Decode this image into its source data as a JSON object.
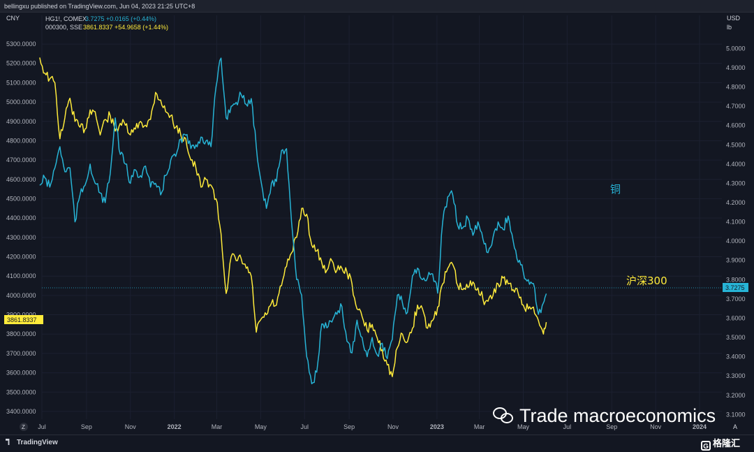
{
  "header": {
    "published": "bellingxu published on TradingView.com, Jun 04, 2023 21:25 UTC+8"
  },
  "legend": {
    "copper": {
      "symbol": "HG1!, COMEX",
      "last": "3.7275",
      "change": "+0.0165 (+0.44%)",
      "color": "#27b4d6"
    },
    "csi300": {
      "symbol": "000300, SSE",
      "last": "3861.8337",
      "change": "+54.9658 (+1.44%)",
      "color": "#ffeb3b"
    }
  },
  "annotations": {
    "copper_label": "铜",
    "csi300_label": "沪深300",
    "watermark": "Trade macroeconomics",
    "brand": "TradingView",
    "corner_brand": "格隆汇",
    "corner_brand_mark": "G",
    "scale_button": "Z",
    "auto_button": "A"
  },
  "colors": {
    "background": "#131722",
    "copper": "#27b4d6",
    "csi300": "#ffeb3b",
    "grid": "#1c2030"
  },
  "chart_data": {
    "type": "line",
    "left_axis": {
      "unit": "CNY",
      "ticks": [
        "5300.0000",
        "5200.0000",
        "5100.0000",
        "5000.0000",
        "4900.0000",
        "4800.0000",
        "4700.0000",
        "4600.0000",
        "4500.0000",
        "4400.0000",
        "4300.0000",
        "4200.0000",
        "4100.0000",
        "4000.0000",
        "3900.0000",
        "3800.0000",
        "3700.0000",
        "3600.0000",
        "3500.0000",
        "3400.0000"
      ],
      "range": [
        3360,
        5340
      ]
    },
    "right_axis": {
      "unit": "USD",
      "unit2": "lb",
      "ticks": [
        "5.0000",
        "4.9000",
        "4.8000",
        "4.7000",
        "4.6000",
        "4.5000",
        "4.4000",
        "4.3000",
        "4.2000",
        "4.1000",
        "4.0000",
        "3.9000",
        "3.8000",
        "3.7000",
        "3.6000",
        "3.5000",
        "3.4000",
        "3.3000",
        "3.2000",
        "3.1000"
      ],
      "range": [
        3.076,
        5.063
      ]
    },
    "x_axis": {
      "range": [
        "2021-07-01",
        "2024-02-01"
      ],
      "ticks": [
        {
          "label": "Jul",
          "date": "2021-07-01",
          "bold": false
        },
        {
          "label": "Sep",
          "date": "2021-09-01",
          "bold": false
        },
        {
          "label": "Nov",
          "date": "2021-11-01",
          "bold": false
        },
        {
          "label": "2022",
          "date": "2022-01-01",
          "bold": true
        },
        {
          "label": "Mar",
          "date": "2022-03-01",
          "bold": false
        },
        {
          "label": "May",
          "date": "2022-05-01",
          "bold": false
        },
        {
          "label": "Jul",
          "date": "2022-07-01",
          "bold": false
        },
        {
          "label": "Sep",
          "date": "2022-09-01",
          "bold": false
        },
        {
          "label": "Nov",
          "date": "2022-11-01",
          "bold": false
        },
        {
          "label": "2023",
          "date": "2023-01-01",
          "bold": true
        },
        {
          "label": "Mar",
          "date": "2023-03-01",
          "bold": false
        },
        {
          "label": "May",
          "date": "2023-05-01",
          "bold": false
        },
        {
          "label": "Jul",
          "date": "2023-07-01",
          "bold": false
        },
        {
          "label": "Sep",
          "date": "2023-09-01",
          "bold": false
        },
        {
          "label": "Nov",
          "date": "2023-11-01",
          "bold": false
        },
        {
          "label": "2024",
          "date": "2024-01-01",
          "bold": true
        }
      ]
    },
    "grid": true,
    "series": [
      {
        "name": "000300, SSE",
        "axis": "left",
        "color": "#ffeb3b",
        "points": [
          [
            "2021-06-28",
            5230
          ],
          [
            "2021-07-05",
            5150
          ],
          [
            "2021-07-12",
            5120
          ],
          [
            "2021-07-19",
            5100
          ],
          [
            "2021-07-26",
            4810
          ],
          [
            "2021-08-02",
            4920
          ],
          [
            "2021-08-09",
            5020
          ],
          [
            "2021-08-16",
            4900
          ],
          [
            "2021-08-23",
            4870
          ],
          [
            "2021-08-30",
            4860
          ],
          [
            "2021-09-06",
            4960
          ],
          [
            "2021-09-13",
            4950
          ],
          [
            "2021-09-20",
            4830
          ],
          [
            "2021-09-27",
            4910
          ],
          [
            "2021-10-04",
            4930
          ],
          [
            "2021-10-11",
            4850
          ],
          [
            "2021-10-18",
            4890
          ],
          [
            "2021-10-25",
            4880
          ],
          [
            "2021-11-01",
            4830
          ],
          [
            "2021-11-08",
            4860
          ],
          [
            "2021-11-15",
            4900
          ],
          [
            "2021-11-22",
            4880
          ],
          [
            "2021-11-29",
            4910
          ],
          [
            "2021-12-06",
            5050
          ],
          [
            "2021-12-13",
            5010
          ],
          [
            "2021-12-20",
            4950
          ],
          [
            "2021-12-27",
            4930
          ],
          [
            "2022-01-03",
            4870
          ],
          [
            "2022-01-10",
            4830
          ],
          [
            "2022-01-17",
            4810
          ],
          [
            "2022-01-24",
            4700
          ],
          [
            "2022-01-31",
            4660
          ],
          [
            "2022-02-07",
            4560
          ],
          [
            "2022-02-14",
            4600
          ],
          [
            "2022-02-21",
            4570
          ],
          [
            "2022-02-28",
            4500
          ],
          [
            "2022-03-07",
            4320
          ],
          [
            "2022-03-14",
            4010
          ],
          [
            "2022-03-21",
            4200
          ],
          [
            "2022-03-28",
            4180
          ],
          [
            "2022-04-04",
            4190
          ],
          [
            "2022-04-11",
            4140
          ],
          [
            "2022-04-18",
            4100
          ],
          [
            "2022-04-25",
            3810
          ],
          [
            "2022-05-02",
            3880
          ],
          [
            "2022-05-09",
            3900
          ],
          [
            "2022-05-16",
            3960
          ],
          [
            "2022-05-23",
            3950
          ],
          [
            "2022-05-30",
            4050
          ],
          [
            "2022-06-06",
            4150
          ],
          [
            "2022-06-13",
            4220
          ],
          [
            "2022-06-20",
            4300
          ],
          [
            "2022-06-27",
            4450
          ],
          [
            "2022-07-04",
            4420
          ],
          [
            "2022-07-11",
            4260
          ],
          [
            "2022-07-18",
            4230
          ],
          [
            "2022-07-25",
            4170
          ],
          [
            "2022-08-01",
            4130
          ],
          [
            "2022-08-08",
            4180
          ],
          [
            "2022-08-15",
            4130
          ],
          [
            "2022-08-22",
            4140
          ],
          [
            "2022-08-29",
            4120
          ],
          [
            "2022-09-05",
            4060
          ],
          [
            "2022-09-12",
            3930
          ],
          [
            "2022-09-19",
            3890
          ],
          [
            "2022-09-26",
            3820
          ],
          [
            "2022-10-03",
            3850
          ],
          [
            "2022-10-10",
            3780
          ],
          [
            "2022-10-17",
            3720
          ],
          [
            "2022-10-24",
            3640
          ],
          [
            "2022-10-31",
            3580
          ],
          [
            "2022-11-07",
            3730
          ],
          [
            "2022-11-14",
            3800
          ],
          [
            "2022-11-21",
            3760
          ],
          [
            "2022-11-28",
            3830
          ],
          [
            "2022-12-05",
            3950
          ],
          [
            "2022-12-12",
            3930
          ],
          [
            "2022-12-19",
            3830
          ],
          [
            "2022-12-26",
            3870
          ],
          [
            "2023-01-02",
            3940
          ],
          [
            "2023-01-09",
            4060
          ],
          [
            "2023-01-16",
            4140
          ],
          [
            "2023-01-23",
            4160
          ],
          [
            "2023-01-30",
            4050
          ],
          [
            "2023-02-06",
            4030
          ],
          [
            "2023-02-13",
            4040
          ],
          [
            "2023-02-20",
            4070
          ],
          [
            "2023-02-27",
            4040
          ],
          [
            "2023-03-06",
            3980
          ],
          [
            "2023-03-13",
            3970
          ],
          [
            "2023-03-20",
            4000
          ],
          [
            "2023-03-27",
            4060
          ],
          [
            "2023-04-03",
            4090
          ],
          [
            "2023-04-10",
            4060
          ],
          [
            "2023-04-17",
            4030
          ],
          [
            "2023-04-24",
            4010
          ],
          [
            "2023-05-01",
            3950
          ],
          [
            "2023-05-08",
            3930
          ],
          [
            "2023-05-15",
            3940
          ],
          [
            "2023-05-22",
            3870
          ],
          [
            "2023-05-29",
            3800
          ],
          [
            "2023-06-02",
            3861.8
          ]
        ]
      },
      {
        "name": "HG1!, COMEX",
        "axis": "right",
        "color": "#27b4d6",
        "points": [
          [
            "2021-06-28",
            4.29
          ],
          [
            "2021-07-05",
            4.33
          ],
          [
            "2021-07-12",
            4.28
          ],
          [
            "2021-07-19",
            4.38
          ],
          [
            "2021-07-26",
            4.49
          ],
          [
            "2021-08-02",
            4.36
          ],
          [
            "2021-08-09",
            4.38
          ],
          [
            "2021-08-16",
            4.1
          ],
          [
            "2021-08-23",
            4.24
          ],
          [
            "2021-08-30",
            4.29
          ],
          [
            "2021-09-06",
            4.4
          ],
          [
            "2021-09-13",
            4.3
          ],
          [
            "2021-09-20",
            4.25
          ],
          [
            "2021-09-27",
            4.2
          ],
          [
            "2021-10-04",
            4.35
          ],
          [
            "2021-10-11",
            4.64
          ],
          [
            "2021-10-18",
            4.45
          ],
          [
            "2021-10-25",
            4.4
          ],
          [
            "2021-11-01",
            4.3
          ],
          [
            "2021-11-08",
            4.37
          ],
          [
            "2021-11-15",
            4.34
          ],
          [
            "2021-11-22",
            4.39
          ],
          [
            "2021-11-29",
            4.28
          ],
          [
            "2021-12-06",
            4.3
          ],
          [
            "2021-12-13",
            4.24
          ],
          [
            "2021-12-20",
            4.34
          ],
          [
            "2021-12-27",
            4.42
          ],
          [
            "2022-01-03",
            4.44
          ],
          [
            "2022-01-10",
            4.53
          ],
          [
            "2022-01-17",
            4.55
          ],
          [
            "2022-01-24",
            4.48
          ],
          [
            "2022-01-31",
            4.5
          ],
          [
            "2022-02-07",
            4.54
          ],
          [
            "2022-02-14",
            4.52
          ],
          [
            "2022-02-21",
            4.49
          ],
          [
            "2022-02-28",
            4.8
          ],
          [
            "2022-03-07",
            4.95
          ],
          [
            "2022-03-14",
            4.64
          ],
          [
            "2022-03-21",
            4.7
          ],
          [
            "2022-03-28",
            4.72
          ],
          [
            "2022-04-04",
            4.76
          ],
          [
            "2022-04-11",
            4.71
          ],
          [
            "2022-04-18",
            4.74
          ],
          [
            "2022-04-25",
            4.49
          ],
          [
            "2022-05-02",
            4.3
          ],
          [
            "2022-05-09",
            4.17
          ],
          [
            "2022-05-16",
            4.3
          ],
          [
            "2022-05-23",
            4.31
          ],
          [
            "2022-05-30",
            4.47
          ],
          [
            "2022-06-06",
            4.48
          ],
          [
            "2022-06-13",
            4.1
          ],
          [
            "2022-06-20",
            3.8
          ],
          [
            "2022-06-27",
            3.72
          ],
          [
            "2022-07-04",
            3.4
          ],
          [
            "2022-07-11",
            3.26
          ],
          [
            "2022-07-18",
            3.32
          ],
          [
            "2022-07-25",
            3.57
          ],
          [
            "2022-08-01",
            3.55
          ],
          [
            "2022-08-08",
            3.58
          ],
          [
            "2022-08-15",
            3.62
          ],
          [
            "2022-08-22",
            3.66
          ],
          [
            "2022-08-29",
            3.48
          ],
          [
            "2022-09-05",
            3.42
          ],
          [
            "2022-09-12",
            3.59
          ],
          [
            "2022-09-19",
            3.5
          ],
          [
            "2022-09-26",
            3.4
          ],
          [
            "2022-10-03",
            3.5
          ],
          [
            "2022-10-10",
            3.41
          ],
          [
            "2022-10-17",
            3.47
          ],
          [
            "2022-10-24",
            3.39
          ],
          [
            "2022-10-31",
            3.49
          ],
          [
            "2022-11-07",
            3.72
          ],
          [
            "2022-11-14",
            3.68
          ],
          [
            "2022-11-21",
            3.63
          ],
          [
            "2022-11-28",
            3.82
          ],
          [
            "2022-12-05",
            3.86
          ],
          [
            "2022-12-12",
            3.8
          ],
          [
            "2022-12-19",
            3.81
          ],
          [
            "2022-12-26",
            3.83
          ],
          [
            "2023-01-02",
            3.73
          ],
          [
            "2023-01-09",
            4.1
          ],
          [
            "2023-01-16",
            4.23
          ],
          [
            "2023-01-23",
            4.24
          ],
          [
            "2023-01-30",
            4.08
          ],
          [
            "2023-02-06",
            4.07
          ],
          [
            "2023-02-13",
            4.12
          ],
          [
            "2023-02-20",
            4.03
          ],
          [
            "2023-02-27",
            4.1
          ],
          [
            "2023-03-06",
            4.01
          ],
          [
            "2023-03-13",
            3.94
          ],
          [
            "2023-03-20",
            4.02
          ],
          [
            "2023-03-27",
            4.1
          ],
          [
            "2023-04-03",
            4.06
          ],
          [
            "2023-04-10",
            4.13
          ],
          [
            "2023-04-17",
            4.0
          ],
          [
            "2023-04-24",
            3.89
          ],
          [
            "2023-05-01",
            3.84
          ],
          [
            "2023-05-08",
            3.8
          ],
          [
            "2023-05-15",
            3.78
          ],
          [
            "2023-05-22",
            3.62
          ],
          [
            "2023-05-29",
            3.68
          ],
          [
            "2023-06-02",
            3.7275
          ]
        ]
      }
    ]
  }
}
